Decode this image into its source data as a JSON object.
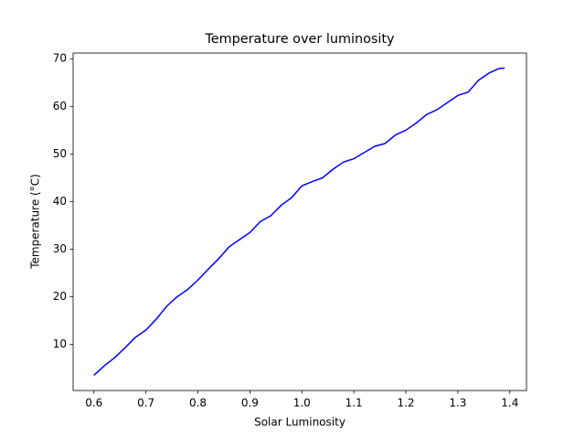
{
  "chart_data": {
    "type": "line",
    "title": "Temperature over luminosity",
    "x_label": "Solar Luminosity",
    "y_label": "Temperature (°C)",
    "x": [
      0.6,
      0.62,
      0.64,
      0.66,
      0.68,
      0.7,
      0.72,
      0.74,
      0.76,
      0.78,
      0.8,
      0.82,
      0.84,
      0.86,
      0.88,
      0.9,
      0.92,
      0.94,
      0.96,
      0.98,
      1.0,
      1.02,
      1.04,
      1.06,
      1.08,
      1.1,
      1.12,
      1.14,
      1.16,
      1.18,
      1.2,
      1.22,
      1.24,
      1.26,
      1.28,
      1.3,
      1.32,
      1.34,
      1.36,
      1.38,
      1.39
    ],
    "series": [
      {
        "color": "#0000ff",
        "values": [
          3.5,
          5.5,
          7.2,
          9.3,
          11.5,
          13.0,
          15.3,
          18.0,
          20.0,
          21.5,
          23.5,
          25.8,
          28.0,
          30.5,
          32.0,
          33.5,
          35.8,
          37.0,
          39.2,
          40.8,
          43.3,
          44.2,
          45.0,
          46.8,
          48.3,
          49.0,
          50.3,
          51.6,
          52.2,
          54.0,
          55.0,
          56.5,
          58.3,
          59.3,
          60.8,
          62.3,
          63.0,
          65.5,
          67.0,
          68.0,
          68.0
        ]
      }
    ],
    "xlim": [
      0.56,
      1.432
    ],
    "ylim": [
      0.3,
      71.2
    ],
    "xticks": [
      0.6,
      0.7,
      0.8,
      0.9,
      {
        "value": 1,
        "label": "1.0"
      },
      1.1,
      1.2,
      1.3,
      1.4
    ],
    "yticks": [
      10,
      20,
      30,
      40,
      50,
      60,
      70
    ],
    "grid": false
  }
}
